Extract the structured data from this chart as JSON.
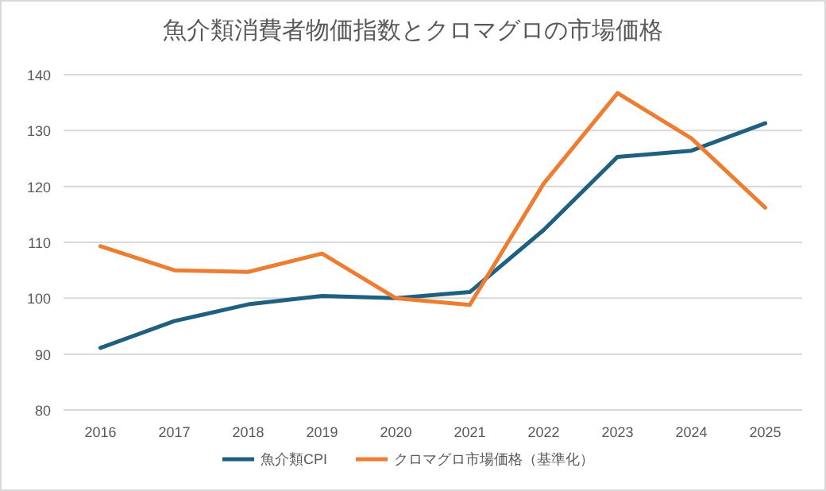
{
  "chart_data": {
    "type": "line",
    "title": "魚介類消費者物価指数とクロマグロの市場価格",
    "categories": [
      "2016",
      "2017",
      "2018",
      "2019",
      "2020",
      "2021",
      "2022",
      "2023",
      "2024",
      "2025"
    ],
    "series": [
      {
        "name": "魚介類CPI",
        "color": "#1f5f7f",
        "values": [
          91.1,
          95.9,
          98.9,
          100.4,
          100,
          101.1,
          112.2,
          125.3,
          126.4,
          131.3
        ]
      },
      {
        "name": "クロマグロ市場価格（基準化）",
        "color": "#ed7d31",
        "values": [
          109.3,
          105,
          104.7,
          108,
          100,
          98.8,
          120.5,
          136.7,
          128.6,
          116.2
        ]
      }
    ],
    "ylim": [
      80,
      140
    ],
    "yticks": [
      80,
      90,
      100,
      110,
      120,
      130,
      140
    ],
    "grid": "y",
    "legend": "bottom",
    "line_style": "solid",
    "marker": "none"
  }
}
